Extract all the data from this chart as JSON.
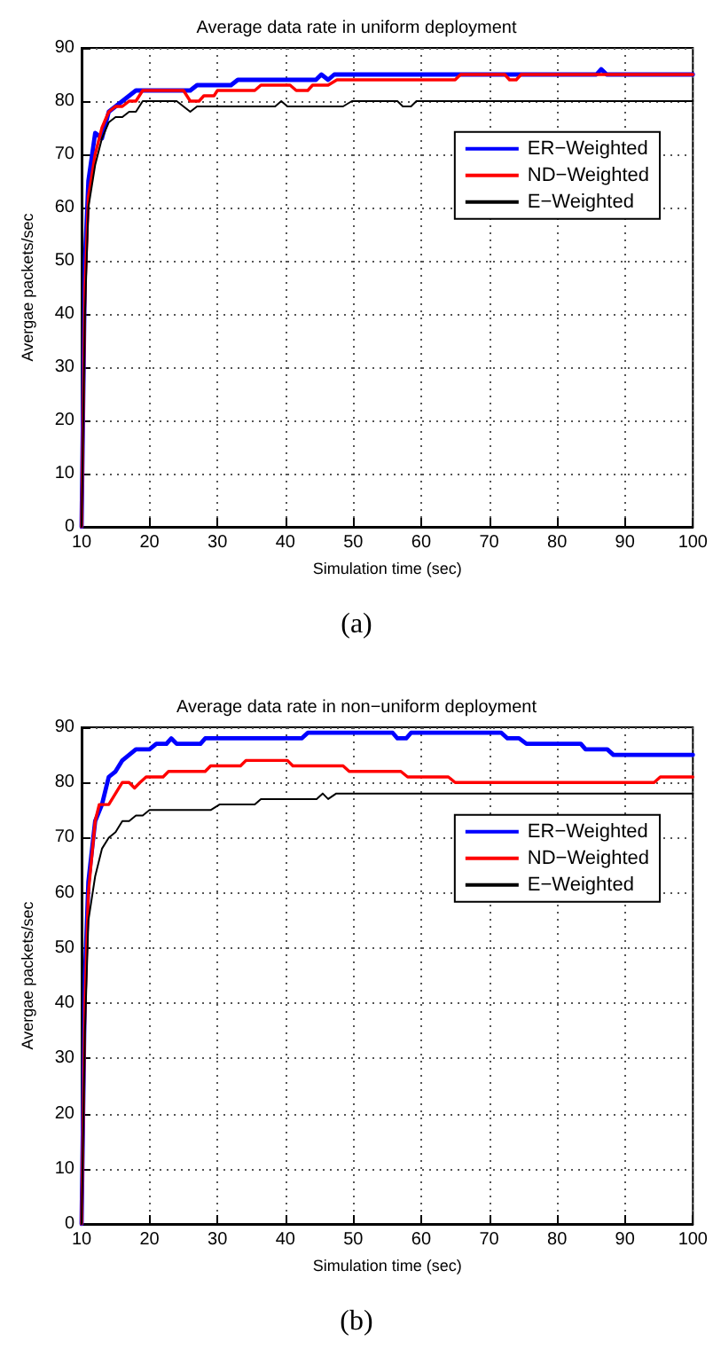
{
  "chart_data": [
    {
      "type": "line",
      "title": "Average data rate in uniform deployment",
      "xlabel": "Simulation time (sec)",
      "ylabel": "Avergae packets/sec",
      "annotations": [
        "(a)"
      ],
      "xlim": [
        10,
        100
      ],
      "xticks": [
        10,
        20,
        30,
        40,
        50,
        60,
        70,
        80,
        90,
        100
      ],
      "ylim": [
        0,
        90
      ],
      "yticks": [
        0,
        10,
        20,
        30,
        40,
        50,
        60,
        70,
        80,
        90
      ],
      "grid": true,
      "legend": "right",
      "marker": "none",
      "line_style": "solid",
      "series": [
        {
          "name": "ER−Weighted",
          "color": "#0000ff",
          "x": [
            10,
            10.5,
            11,
            12,
            13,
            14,
            15,
            16,
            17,
            18,
            26,
            27,
            32,
            33,
            44.5,
            45.3,
            46.3,
            47.2,
            85.8,
            86.5,
            87.3,
            100
          ],
          "values": [
            0,
            50,
            65,
            74,
            73,
            78,
            79,
            80,
            81,
            82,
            82,
            83,
            83,
            84,
            84,
            85,
            84,
            85,
            85,
            86,
            85,
            85
          ]
        },
        {
          "name": "ND−Weighted",
          "color": "#ff0000",
          "x": [
            10,
            10.5,
            11,
            12,
            13,
            14,
            15,
            16,
            17,
            18,
            19,
            25,
            26,
            27.3,
            28,
            29.5,
            30,
            35.5,
            36.4,
            40.7,
            41.6,
            43.3,
            44,
            46.3,
            47.6,
            65,
            65.8,
            72.3,
            73,
            74,
            74.7,
            100
          ],
          "values": [
            0,
            45,
            62,
            70,
            75,
            78,
            79,
            79,
            80,
            80,
            82,
            82,
            80,
            80,
            81,
            81,
            82,
            82,
            83,
            83,
            82,
            82,
            83,
            83,
            84,
            84,
            85,
            85,
            84,
            84,
            85,
            85
          ]
        },
        {
          "name": "E−Weighted",
          "color": "#000000",
          "x": [
            10,
            10.5,
            11,
            12,
            13,
            14,
            15,
            16,
            17,
            18,
            19,
            24,
            26,
            27,
            38.5,
            39.4,
            40.3,
            48.5,
            49.8,
            56.5,
            57.3,
            58.5,
            59.3,
            100
          ],
          "values": [
            0,
            40,
            60,
            68,
            73,
            76,
            77,
            77,
            78,
            78,
            80,
            80,
            78,
            79,
            79,
            80,
            79,
            79,
            80,
            80,
            79,
            79,
            80,
            80
          ]
        }
      ]
    },
    {
      "type": "line",
      "title": "Average data rate in non−uniform deployment",
      "xlabel": "Simulation time (sec)",
      "ylabel": "Avergae packets/sec",
      "annotations": [
        "(b)"
      ],
      "xlim": [
        10,
        100
      ],
      "xticks": [
        10,
        20,
        30,
        40,
        50,
        60,
        70,
        80,
        90,
        100
      ],
      "ylim": [
        0,
        90
      ],
      "yticks": [
        0,
        10,
        20,
        30,
        40,
        50,
        60,
        70,
        80,
        90
      ],
      "grid": true,
      "legend": "right",
      "marker": "none",
      "line_style": "solid",
      "series": [
        {
          "name": "ER−Weighted",
          "color": "#0000ff",
          "x": [
            10,
            10.5,
            11,
            12,
            13,
            14,
            15,
            16,
            17,
            18,
            20,
            21,
            22.5,
            23.2,
            24,
            27.5,
            28.2,
            42.4,
            43.3,
            55.8,
            56.5,
            57.8,
            58.5,
            71.8,
            72.7,
            74.4,
            75.5,
            83.5,
            84.2,
            87.4,
            88.3,
            100
          ],
          "values": [
            0,
            45,
            62,
            73,
            76,
            81,
            82,
            84,
            85,
            86,
            86,
            87,
            87,
            88,
            87,
            87,
            88,
            88,
            89,
            89,
            88,
            88,
            89,
            89,
            88,
            88,
            87,
            87,
            86,
            86,
            85,
            85
          ]
        },
        {
          "name": "ND−Weighted",
          "color": "#ff0000",
          "x": [
            10,
            10.5,
            11,
            12,
            12.6,
            14,
            15,
            16,
            17,
            17.8,
            18.6,
            19.5,
            22,
            22.8,
            28.2,
            29,
            33.4,
            34.2,
            40.3,
            41.1,
            48.5,
            49.4,
            57,
            58,
            64,
            65,
            94.3,
            95.2,
            100
          ],
          "values": [
            0,
            40,
            60,
            73,
            76,
            76,
            78,
            80,
            80,
            79,
            80,
            81,
            81,
            82,
            82,
            83,
            83,
            84,
            84,
            83,
            83,
            82,
            82,
            81,
            81,
            80,
            80,
            81,
            81
          ]
        },
        {
          "name": "E−Weighted",
          "color": "#000000",
          "x": [
            10,
            10.5,
            11,
            12,
            13,
            14,
            15,
            16,
            17,
            18,
            19,
            20,
            29,
            30.3,
            35.5,
            36.4,
            44.6,
            45.5,
            46.3,
            47.5,
            100
          ],
          "values": [
            0,
            35,
            55,
            63,
            68,
            70,
            71,
            73,
            73,
            74,
            74,
            75,
            75,
            76,
            76,
            77,
            77,
            78,
            77,
            78,
            78
          ]
        }
      ]
    }
  ]
}
